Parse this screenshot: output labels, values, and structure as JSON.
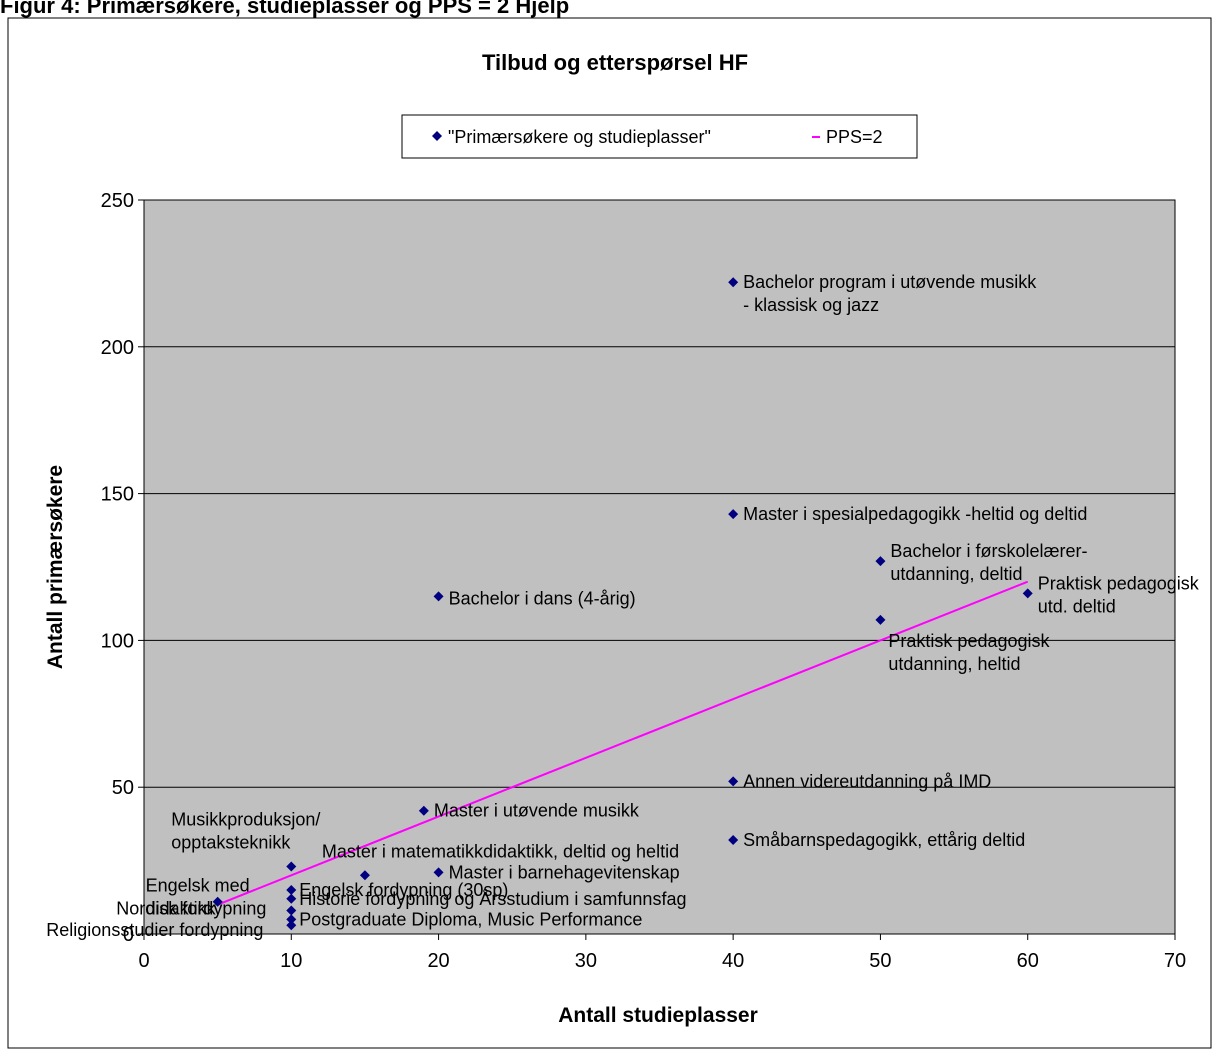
{
  "page": {
    "header_text": "Figur 4: Primærsøkere, studieplasser og PPS = 2 Hjelp"
  },
  "chart_data": {
    "type": "scatter",
    "title": "Tilbud og etterspørsel HF",
    "xlabel": "Antall studieplasser",
    "ylabel": "Antall primærsøkere",
    "xlim": [
      0,
      70
    ],
    "ylim": [
      0,
      250
    ],
    "x_ticks": [
      0,
      10,
      20,
      30,
      40,
      50,
      60,
      70
    ],
    "y_ticks": [
      0,
      50,
      100,
      150,
      200,
      250
    ],
    "grid": "horizontal",
    "legend_position": "top",
    "series": [
      {
        "name": "\"Primærsøkere og studieplasser\"",
        "kind": "scatter",
        "color": "#000080",
        "marker": "diamond",
        "points": [
          {
            "x": 40,
            "y": 222,
            "label": "Bachelor program i utøvende musikk\n- klassisk og jazz"
          },
          {
            "x": 40,
            "y": 143,
            "label": "Master i spesialpedagogikk -heltid og deltid"
          },
          {
            "x": 50,
            "y": 127,
            "label": "Bachelor i førskolelærer-\nutdanning, deltid"
          },
          {
            "x": 60,
            "y": 116,
            "label": "Praktisk pedagogisk\nutd. deltid"
          },
          {
            "x": 20,
            "y": 115,
            "label": "Bachelor i dans (4-årig)"
          },
          {
            "x": 50,
            "y": 107,
            "label": "Praktisk pedagogisk\nutdanning, heltid"
          },
          {
            "x": 40,
            "y": 52,
            "label": "Annen videreutdanning på IMD"
          },
          {
            "x": 19,
            "y": 42,
            "label": "Master i utøvende musikk"
          },
          {
            "x": 40,
            "y": 32,
            "label": "Småbarnspedagogikk, ettårig deltid"
          },
          {
            "x": 10,
            "y": 23,
            "label": "Musikkproduksjon/\nopptaksteknikk"
          },
          {
            "x": 20,
            "y": 21,
            "label": "Master i barnehagevitenskap"
          },
          {
            "x": 15,
            "y": 20,
            "label": "Master i matematikkdidaktikk, deltid og heltid"
          },
          {
            "x": 10,
            "y": 15,
            "label": "Engelsk fordypning (30sp)"
          },
          {
            "x": 10,
            "y": 12,
            "label": "Historie fordypning og Årsstudium i samfunnsfag"
          },
          {
            "x": 5,
            "y": 11,
            "label": "Engelsk med\ndidaktikk"
          },
          {
            "x": 10,
            "y": 8,
            "label": "Nordisk fordypning"
          },
          {
            "x": 10,
            "y": 5,
            "label": "Postgraduate Diploma, Music Performance"
          },
          {
            "x": 10,
            "y": 3,
            "label": "Religionsstudier fordypning"
          }
        ]
      },
      {
        "name": "PPS=2",
        "kind": "line",
        "color": "#ff00ff",
        "x": [
          5,
          60
        ],
        "y": [
          10,
          120
        ]
      }
    ]
  },
  "style": {
    "plot_background": "#c0c0c0",
    "gridline_color": "#000000",
    "border_color": "#000000"
  }
}
